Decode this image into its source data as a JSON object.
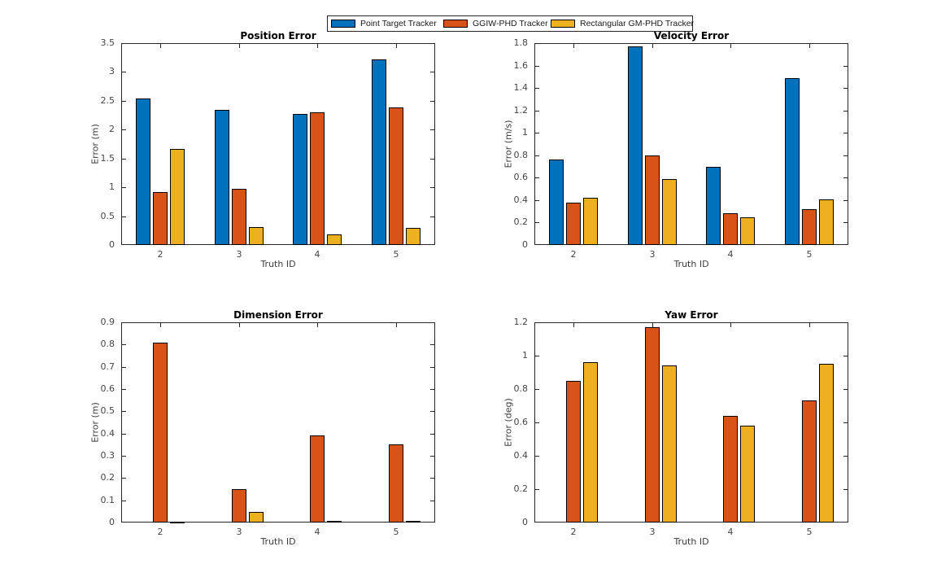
{
  "figure": {
    "background": "#ffffff",
    "axis_color": "#262626",
    "tick_text_color": "#464646",
    "title_color": "#000000",
    "bar_edge_color": "#000000"
  },
  "legend": {
    "position": "top-center",
    "items": [
      {
        "label": "Point Target Tracker",
        "color": "#0072BD"
      },
      {
        "label": "GGIW-PHD Tracker",
        "color": "#D95319"
      },
      {
        "label": "Rectangular GM-PHD Tracker",
        "color": "#EDB120"
      }
    ]
  },
  "chart_data": [
    {
      "type": "bar",
      "title": "Position Error",
      "xlabel": "Truth ID",
      "ylabel": "Error (m)",
      "categories": [
        "2",
        "3",
        "4",
        "5"
      ],
      "ylim": [
        0,
        3.5
      ],
      "ytick_step": 0.5,
      "grid": false,
      "series": [
        {
          "name": "Point Target Tracker",
          "color": "#0072BD",
          "values": [
            2.54,
            2.34,
            2.27,
            3.22
          ]
        },
        {
          "name": "GGIW-PHD Tracker",
          "color": "#D95319",
          "values": [
            0.92,
            0.97,
            2.3,
            2.38
          ]
        },
        {
          "name": "Rectangular GM-PHD Tracker",
          "color": "#EDB120",
          "values": [
            1.67,
            0.31,
            0.18,
            0.29
          ]
        }
      ]
    },
    {
      "type": "bar",
      "title": "Velocity Error",
      "xlabel": "Truth ID",
      "ylabel": "Error (m/s)",
      "categories": [
        "2",
        "3",
        "4",
        "5"
      ],
      "ylim": [
        0,
        1.8
      ],
      "ytick_step": 0.2,
      "grid": false,
      "series": [
        {
          "name": "Point Target Tracker",
          "color": "#0072BD",
          "values": [
            0.76,
            1.77,
            0.7,
            1.49
          ]
        },
        {
          "name": "GGIW-PHD Tracker",
          "color": "#D95319",
          "values": [
            0.38,
            0.8,
            0.28,
            0.32
          ]
        },
        {
          "name": "Rectangular GM-PHD Tracker",
          "color": "#EDB120",
          "values": [
            0.42,
            0.59,
            0.25,
            0.41
          ]
        }
      ]
    },
    {
      "type": "bar",
      "title": "Dimension Error",
      "xlabel": "Truth ID",
      "ylabel": "Error (m)",
      "categories": [
        "2",
        "3",
        "4",
        "5"
      ],
      "ylim": [
        0,
        0.9
      ],
      "ytick_step": 0.1,
      "grid": false,
      "series": [
        {
          "name": "Point Target Tracker",
          "color": "#0072BD",
          "values": [
            0,
            0,
            0,
            0
          ]
        },
        {
          "name": "GGIW-PHD Tracker",
          "color": "#D95319",
          "values": [
            0.81,
            0.15,
            0.39,
            0.35
          ]
        },
        {
          "name": "Rectangular GM-PHD Tracker",
          "color": "#EDB120",
          "values": [
            0.003,
            0.048,
            0.007,
            0.007
          ]
        }
      ]
    },
    {
      "type": "bar",
      "title": "Yaw Error",
      "xlabel": "Truth ID",
      "ylabel": "Error (deg)",
      "categories": [
        "2",
        "3",
        "4",
        "5"
      ],
      "ylim": [
        0,
        1.2
      ],
      "ytick_step": 0.2,
      "grid": false,
      "series": [
        {
          "name": "Point Target Tracker",
          "color": "#0072BD",
          "values": [
            0,
            0,
            0,
            0
          ]
        },
        {
          "name": "GGIW-PHD Tracker",
          "color": "#D95319",
          "values": [
            0.85,
            1.17,
            0.64,
            0.73
          ]
        },
        {
          "name": "Rectangular GM-PHD Tracker",
          "color": "#EDB120",
          "values": [
            0.96,
            0.94,
            0.58,
            0.95
          ]
        }
      ]
    }
  ]
}
